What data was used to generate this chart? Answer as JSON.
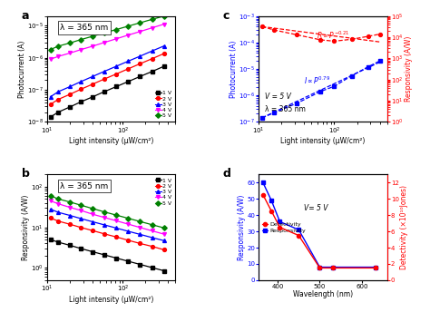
{
  "panel_a": {
    "label": "a",
    "annotation": "λ = 365 nm",
    "xlabel": "Light intensity (μW/cm²)",
    "ylabel": "Photocurrent (A)",
    "xlim": [
      10,
      500
    ],
    "ylim": [
      1e-08,
      2e-05
    ],
    "voltages": [
      "1 V",
      "2 V",
      "3 V",
      "4 V",
      "5 V"
    ],
    "line_colors": [
      "black",
      "red",
      "blue",
      "magenta",
      "green"
    ],
    "markers": [
      "s",
      "o",
      "^",
      "v",
      "D"
    ],
    "scatter_x": [
      11,
      14,
      20,
      28,
      40,
      57,
      82,
      118,
      170,
      244,
      352
    ],
    "data_1V": [
      1.4e-08,
      2e-08,
      2.9e-08,
      4.2e-08,
      6e-08,
      8.7e-08,
      1.25e-07,
      1.8e-07,
      2.6e-07,
      3.7e-07,
      5.4e-07
    ],
    "data_2V": [
      3.5e-08,
      5e-08,
      7.2e-08,
      1.04e-07,
      1.5e-07,
      2.16e-07,
      3.1e-07,
      4.5e-07,
      6.5e-07,
      9.3e-07,
      1.35e-06
    ],
    "data_3V": [
      6e-08,
      8.7e-08,
      1.25e-07,
      1.8e-07,
      2.6e-07,
      3.75e-07,
      5.4e-07,
      7.8e-07,
      1.12e-06,
      1.62e-06,
      2.33e-06
    ],
    "data_4V": [
      9e-07,
      1.1e-06,
      1.4e-06,
      1.8e-06,
      2.3e-06,
      3e-06,
      3.9e-06,
      5.1e-06,
      6.6e-06,
      8.6e-06,
      1.12e-05
    ],
    "data_5V": [
      1.8e-06,
      2.3e-06,
      2.9e-06,
      3.7e-06,
      4.7e-06,
      6e-06,
      7.6e-06,
      9.7e-06,
      1.24e-05,
      1.58e-05,
      2e-05
    ]
  },
  "panel_b": {
    "label": "b",
    "annotation": "λ = 365 nm",
    "xlabel": "Light intensity (μW/cm²)",
    "ylabel": "Responsivity (A/W)",
    "xlim": [
      10,
      500
    ],
    "ylim": [
      0.5,
      200
    ],
    "voltages": [
      "1 V",
      "2 V",
      "3 V",
      "4 V",
      "5 V"
    ],
    "line_colors": [
      "black",
      "red",
      "blue",
      "magenta",
      "green"
    ],
    "markers": [
      "s",
      "o",
      "^",
      "v",
      "D"
    ],
    "scatter_x": [
      11,
      14,
      20,
      28,
      40,
      57,
      82,
      118,
      170,
      244,
      352
    ],
    "data_1V": [
      5.0,
      4.3,
      3.6,
      3.0,
      2.5,
      2.1,
      1.75,
      1.46,
      1.22,
      1.02,
      0.85
    ],
    "data_2V": [
      17,
      14.2,
      11.9,
      9.9,
      8.3,
      6.9,
      5.8,
      4.8,
      4.0,
      3.4,
      2.8
    ],
    "data_3V": [
      28,
      23.4,
      19.6,
      16.4,
      13.7,
      11.5,
      9.6,
      8.0,
      6.7,
      5.6,
      4.7
    ],
    "data_4V": [
      45,
      38,
      31,
      26,
      21,
      17.5,
      14.5,
      12.0,
      9.9,
      8.2,
      6.8
    ],
    "data_5V": [
      60,
      50,
      42,
      35,
      29,
      24,
      20,
      16.7,
      13.9,
      11.6,
      9.7
    ]
  },
  "panel_c": {
    "label": "c",
    "annotation_v": "V = 5 V",
    "annotation_l": "λ = 365 nm",
    "xlabel": "Light intensity (μW/cm²)",
    "ylabel_left": "Photocurrent (A)",
    "ylabel_right": "Responsivity (A/W)",
    "xlim": [
      10,
      500
    ],
    "ylim_left": [
      1e-07,
      0.001
    ],
    "ylim_right": [
      1.0,
      100000.0
    ],
    "scatter_x": [
      11,
      16,
      32,
      66,
      100,
      170,
      280,
      400
    ],
    "blue_scatter": [
      1.4e-07,
      2.2e-07,
      5e-07,
      1.4e-06,
      2.2e-06,
      5.5e-06,
      1.2e-05,
      2e-05
    ],
    "red_scatter": [
      32000.0,
      22000.0,
      13000.0,
      7500.0,
      6500.0,
      8000.0,
      11000.0,
      14000.0
    ],
    "blue_fit_x": [
      11,
      400
    ],
    "blue_fit_y": [
      1.4e-07,
      1.8e-05
    ],
    "red_fit_x": [
      11,
      400
    ],
    "red_fit_y": [
      32000.0,
      6000.0
    ]
  },
  "panel_d": {
    "label": "d",
    "annotation": "V= 5 V",
    "xlabel": "Wavelength (nm)",
    "ylabel_left": "Responsivity (A/W)",
    "ylabel_right": "Detectivity (×10¹⁰Jones)",
    "xlim": [
      355,
      660
    ],
    "ylim_left": [
      0,
      65
    ],
    "ylim_right": [
      0,
      13
    ],
    "yticks_left": [
      0,
      10,
      20,
      30,
      40,
      50,
      60
    ],
    "yticks_right": [
      0,
      2,
      4,
      6,
      8,
      10,
      12
    ],
    "wavelengths": [
      365,
      385,
      405,
      450,
      500,
      532,
      633
    ],
    "responsivity": [
      60,
      49,
      36,
      31,
      8,
      8,
      8
    ],
    "detectivity": [
      10.5,
      8.5,
      6.5,
      5.5,
      1.5,
      1.5,
      1.5
    ]
  }
}
